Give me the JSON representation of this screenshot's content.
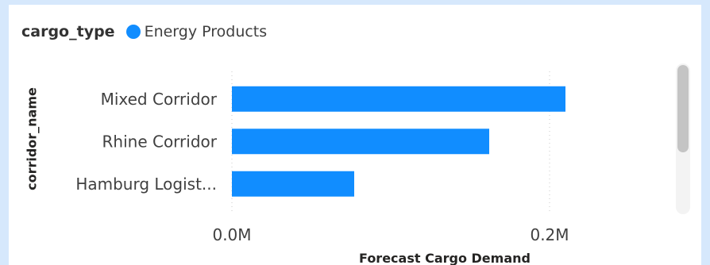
{
  "legend": {
    "title": "cargo_type",
    "items": [
      {
        "label": "Energy Products",
        "color": "#118dff"
      }
    ]
  },
  "chart_data": {
    "type": "bar",
    "orientation": "horizontal",
    "categories": [
      "Mixed Corridor",
      "Rhine Corridor",
      "Hamburg Logist..."
    ],
    "series": [
      {
        "name": "Energy Products",
        "values": [
          0.21,
          0.162,
          0.077
        ],
        "color": "#118dff"
      }
    ],
    "xlabel": "Forecast Cargo Demand",
    "ylabel": "corridor_name",
    "xlim": [
      0,
      0.26
    ],
    "xticks": [
      {
        "value": 0,
        "label": "0.0M"
      },
      {
        "value": 0.2,
        "label": "0.2M"
      }
    ],
    "grid": true,
    "legend_position": "top-left"
  },
  "scrollbar": {
    "orientation": "vertical"
  }
}
